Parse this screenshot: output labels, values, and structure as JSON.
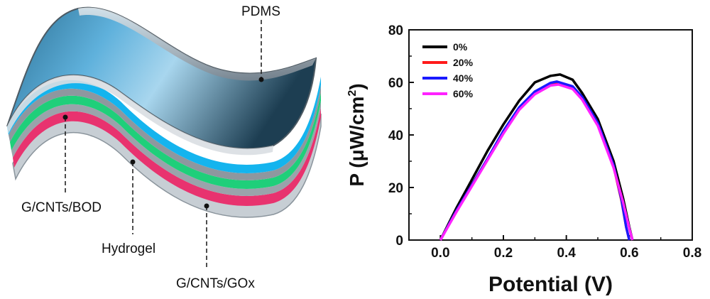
{
  "diagram": {
    "labels": {
      "pdms": "PDMS",
      "bod": "G/CNTs/BOD",
      "hydrogel": "Hydrogel",
      "gox": "G/CNTs/GOx"
    },
    "colors": {
      "pdms_top": "#3f86b0",
      "cyan": "#14b4ee",
      "green": "#1fcf7a",
      "pink": "#e8336f",
      "gray": "#b9c1c8"
    }
  },
  "chart_data": {
    "type": "line",
    "title": "",
    "xlabel": "Potential (V)",
    "ylabel_main": "P (μW/cm",
    "ylabel_sup": "2",
    "ylabel_end": ")",
    "xlim": [
      -0.1,
      0.8
    ],
    "ylim": [
      0,
      80
    ],
    "xticks": [
      0.0,
      0.2,
      0.4,
      0.6,
      0.8
    ],
    "xtick_labels": [
      "0.0",
      "0.2",
      "0.4",
      "0.6",
      "0.8"
    ],
    "yticks": [
      0,
      20,
      40,
      60,
      80
    ],
    "ytick_labels": [
      "0",
      "20",
      "40",
      "60",
      "80"
    ],
    "legend_position": "top-left",
    "series": [
      {
        "name": "0%",
        "color": "#000000",
        "x": [
          0.0,
          0.05,
          0.1,
          0.15,
          0.2,
          0.25,
          0.3,
          0.35,
          0.38,
          0.42,
          0.45,
          0.5,
          0.55,
          0.58,
          0.6,
          0.61
        ],
        "y": [
          0,
          12,
          23,
          34,
          44,
          53,
          60,
          62.5,
          63,
          61,
          56,
          46,
          30,
          16,
          5,
          0
        ]
      },
      {
        "name": "20%",
        "color": "#ff1a1a",
        "x": [
          0.0,
          0.05,
          0.1,
          0.15,
          0.2,
          0.25,
          0.3,
          0.35,
          0.375,
          0.42,
          0.45,
          0.5,
          0.55,
          0.575,
          0.59,
          0.6
        ],
        "y": [
          0,
          11,
          21,
          31,
          41,
          50,
          56,
          59.3,
          59.8,
          58,
          54,
          44,
          28,
          15,
          5,
          0
        ]
      },
      {
        "name": "40%",
        "color": "#1a1aff",
        "x": [
          0.0,
          0.05,
          0.1,
          0.15,
          0.2,
          0.25,
          0.3,
          0.35,
          0.37,
          0.42,
          0.45,
          0.5,
          0.55,
          0.575,
          0.59,
          0.6
        ],
        "y": [
          0,
          11,
          21,
          31,
          41.5,
          50.5,
          56.5,
          59.8,
          60.3,
          58.5,
          54.5,
          44.5,
          28.5,
          15.5,
          5,
          0
        ]
      },
      {
        "name": "60%",
        "color": "#ff22ff",
        "x": [
          0.0,
          0.05,
          0.1,
          0.15,
          0.2,
          0.25,
          0.3,
          0.35,
          0.375,
          0.42,
          0.45,
          0.5,
          0.55,
          0.58,
          0.6,
          0.61
        ],
        "y": [
          0,
          10.5,
          20.5,
          30.5,
          40.5,
          49.5,
          55.5,
          58.8,
          59.2,
          57.5,
          53.5,
          43.5,
          27.5,
          14.5,
          4.5,
          0
        ]
      }
    ]
  }
}
